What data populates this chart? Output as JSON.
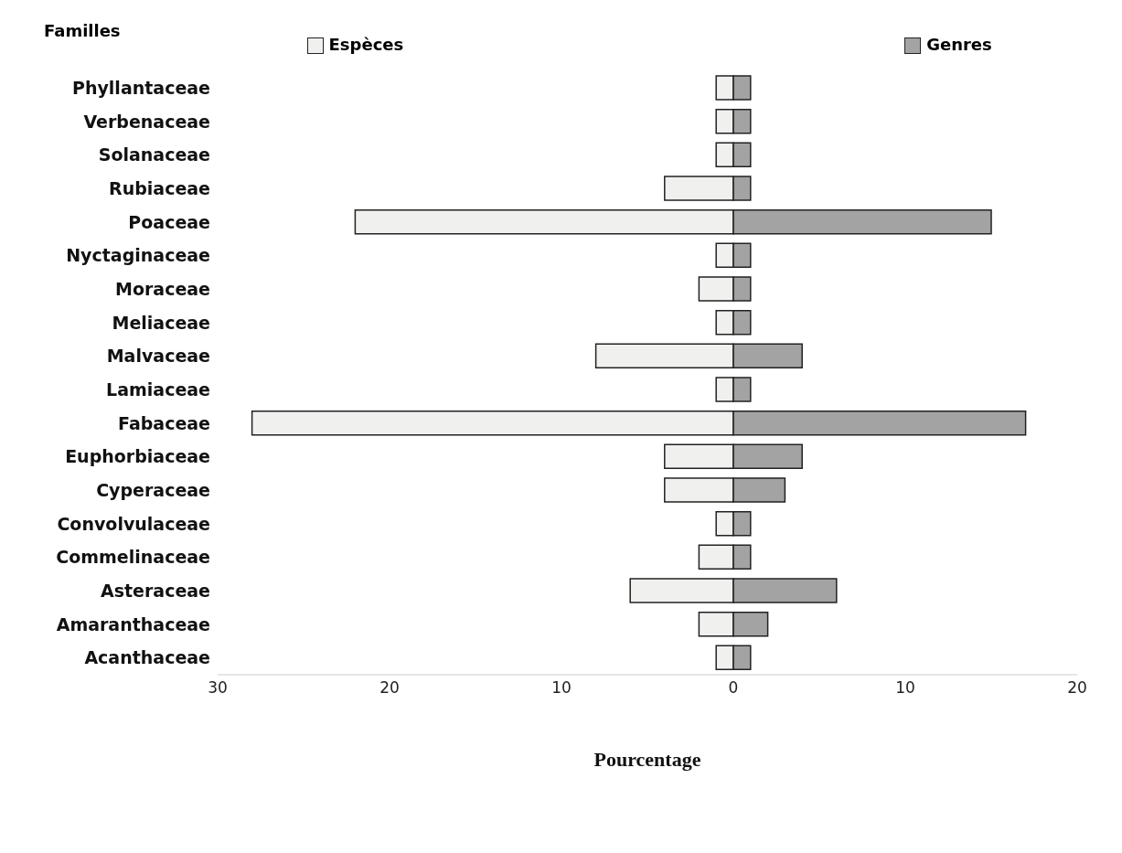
{
  "chart_data": {
    "type": "bar",
    "orientation": "horizontal",
    "ylabel": "Familles",
    "xlabel": "Pourcentage",
    "categories": [
      "Phyllantaceae",
      "Verbenaceae",
      "Solanaceae",
      "Rubiaceae",
      "Poaceae",
      "Nyctaginaceae",
      "Moraceae",
      "Meliaceae",
      "Malvaceae",
      "Lamiaceae",
      "Fabaceae",
      "Euphorbiaceae",
      "Cyperaceae",
      "Convolvulaceae",
      "Commelinaceae",
      "Asteraceae",
      "Amaranthaceae",
      "Acanthaceae"
    ],
    "series": [
      {
        "name": "Espèces",
        "color": "#f0f0ee",
        "values": [
          -1,
          -1,
          -1,
          -4,
          -22,
          -1,
          -2,
          -1,
          -8,
          -1,
          -28,
          -4,
          -4,
          -1,
          -2,
          -6,
          -2,
          -1
        ]
      },
      {
        "name": "Genres",
        "color": "#a3a3a3",
        "values": [
          1,
          1,
          1,
          1,
          15,
          1,
          1,
          1,
          4,
          1,
          17,
          4,
          3,
          1,
          1,
          6,
          2,
          1
        ]
      }
    ],
    "xlim": [
      -30,
      20
    ],
    "xticks": [
      {
        "value": -30,
        "label": "30"
      },
      {
        "value": -20,
        "label": "20"
      },
      {
        "value": -10,
        "label": "10"
      },
      0,
      10,
      20
    ],
    "stacked": true,
    "grid": false,
    "legend": "top"
  }
}
